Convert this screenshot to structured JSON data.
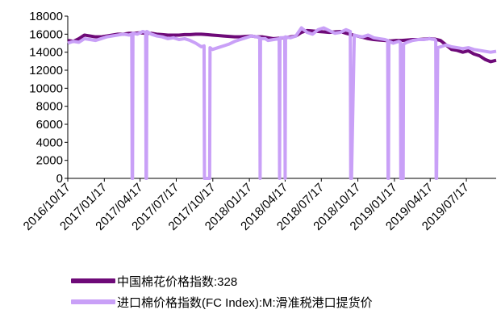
{
  "chart_data": {
    "type": "line",
    "title": "",
    "xlabel": "",
    "ylabel": "",
    "ylim": [
      0,
      18000
    ],
    "yticks": [
      "0",
      "2000",
      "4000",
      "6000",
      "8000",
      "10000",
      "12000",
      "14000",
      "16000",
      "18000"
    ],
    "xticks": [
      "2016/10/17",
      "2017/01/17",
      "2017/04/17",
      "2017/07/17",
      "2017/10/17",
      "2018/01/17",
      "2018/04/17",
      "2018/07/17",
      "2018/10/17",
      "2019/01/17",
      "2019/04/17",
      "2019/07/17"
    ],
    "xrange": [
      "2016-10-17",
      "2019-09-30"
    ],
    "grid": false,
    "legend_position": "bottom",
    "series": [
      {
        "name": "中国棉花价格指数:328",
        "color": "#6e0a78",
        "x": [
          "2016-10-17",
          "2016-10-31",
          "2016-11-14",
          "2016-11-28",
          "2016-12-12",
          "2016-12-26",
          "2017-01-09",
          "2017-01-23",
          "2017-02-06",
          "2017-02-20",
          "2017-03-06",
          "2017-03-20",
          "2017-04-03",
          "2017-04-17",
          "2017-05-01",
          "2017-05-15",
          "2017-05-29",
          "2017-06-12",
          "2017-06-26",
          "2017-07-10",
          "2017-07-24",
          "2017-08-07",
          "2017-08-21",
          "2017-09-04",
          "2017-09-18",
          "2017-10-02",
          "2017-10-16",
          "2017-10-30",
          "2017-11-13",
          "2017-11-27",
          "2017-12-11",
          "2017-12-25",
          "2018-01-08",
          "2018-01-22",
          "2018-02-05",
          "2018-02-19",
          "2018-03-05",
          "2018-03-19",
          "2018-04-02",
          "2018-04-16",
          "2018-04-30",
          "2018-05-14",
          "2018-05-28",
          "2018-06-11",
          "2018-06-25",
          "2018-07-09",
          "2018-07-23",
          "2018-08-06",
          "2018-08-20",
          "2018-09-03",
          "2018-09-17",
          "2018-10-01",
          "2018-10-15",
          "2018-10-29",
          "2018-11-12",
          "2018-11-26",
          "2018-12-10",
          "2018-12-24",
          "2019-01-07",
          "2019-01-21",
          "2019-02-04",
          "2019-02-18",
          "2019-03-04",
          "2019-03-18",
          "2019-04-01",
          "2019-04-15",
          "2019-04-29",
          "2019-05-13",
          "2019-05-27",
          "2019-06-10",
          "2019-06-24",
          "2019-07-08",
          "2019-07-22",
          "2019-08-05",
          "2019-08-19",
          "2019-09-02",
          "2019-09-16",
          "2019-09-30"
        ],
        "values": [
          15300,
          15200,
          15500,
          15900,
          15800,
          15700,
          15700,
          15800,
          15900,
          16000,
          16000,
          16100,
          16100,
          16150,
          16100,
          16100,
          16000,
          15950,
          15900,
          15900,
          15900,
          15950,
          15950,
          16000,
          16000,
          15950,
          15900,
          15850,
          15800,
          15750,
          15700,
          15700,
          15750,
          15800,
          15700,
          15700,
          15600,
          15500,
          15550,
          15600,
          15700,
          15800,
          16200,
          16400,
          16350,
          16300,
          16250,
          16200,
          16250,
          16300,
          16100,
          15950,
          15800,
          15650,
          15500,
          15400,
          15350,
          15300,
          15250,
          15300,
          15300,
          15350,
          15400,
          15400,
          15450,
          15500,
          15450,
          15300,
          14800,
          14300,
          14200,
          14000,
          14150,
          13800,
          13600,
          13200,
          12950,
          13100
        ]
      },
      {
        "name": "进口棉价格指数(FC Index):M:滑准税港口提货价",
        "color": "#c9a0f7",
        "x": [
          "2016-10-17",
          "2016-10-31",
          "2016-11-14",
          "2016-11-28",
          "2016-12-12",
          "2016-12-26",
          "2017-01-09",
          "2017-01-23",
          "2017-02-06",
          "2017-02-20",
          "2017-03-06",
          "2017-03-20",
          "2017-03-27",
          "2017-03-28",
          "2017-03-29",
          "2017-03-30",
          "2017-04-10",
          "2017-04-24",
          "2017-05-01",
          "2017-05-02",
          "2017-05-03",
          "2017-05-04",
          "2017-05-15",
          "2017-05-29",
          "2017-06-12",
          "2017-06-26",
          "2017-07-10",
          "2017-07-24",
          "2017-08-07",
          "2017-08-21",
          "2017-09-04",
          "2017-09-18",
          "2017-09-25",
          "2017-09-26",
          "2017-09-27",
          "2017-10-02",
          "2017-10-09",
          "2017-10-10",
          "2017-10-16",
          "2017-10-30",
          "2017-11-13",
          "2017-11-27",
          "2017-12-11",
          "2017-12-25",
          "2018-01-08",
          "2018-01-22",
          "2018-02-05",
          "2018-02-12",
          "2018-02-13",
          "2018-02-14",
          "2018-02-26",
          "2018-03-05",
          "2018-03-19",
          "2018-04-02",
          "2018-04-03",
          "2018-04-04",
          "2018-04-05",
          "2018-04-16",
          "2018-04-17",
          "2018-04-18",
          "2018-04-30",
          "2018-05-14",
          "2018-05-28",
          "2018-06-11",
          "2018-06-25",
          "2018-07-09",
          "2018-07-23",
          "2018-08-06",
          "2018-08-20",
          "2018-09-03",
          "2018-09-17",
          "2018-09-28",
          "2018-09-29",
          "2018-10-01",
          "2018-10-08",
          "2018-10-15",
          "2018-10-29",
          "2018-11-12",
          "2018-11-26",
          "2018-12-10",
          "2018-12-24",
          "2018-12-31",
          "2019-01-01",
          "2019-01-02",
          "2019-01-03",
          "2019-01-14",
          "2019-01-28",
          "2019-02-01",
          "2019-02-02",
          "2019-02-08",
          "2019-02-09",
          "2019-02-18",
          "2019-03-04",
          "2019-03-18",
          "2019-04-01",
          "2019-04-15",
          "2019-04-29",
          "2019-05-01",
          "2019-05-02",
          "2019-05-03",
          "2019-05-06",
          "2019-05-13",
          "2019-05-27",
          "2019-06-10",
          "2019-06-24",
          "2019-07-08",
          "2019-07-22",
          "2019-08-05",
          "2019-08-19",
          "2019-09-02",
          "2019-09-16",
          "2019-09-30"
        ],
        "values": [
          15000,
          15200,
          15100,
          15500,
          15400,
          15300,
          15500,
          15700,
          15800,
          15900,
          16000,
          15900,
          16000,
          0,
          0,
          16100,
          16000,
          16300,
          16200,
          0,
          0,
          16300,
          16000,
          15800,
          15700,
          15500,
          15600,
          15400,
          15500,
          15300,
          15000,
          14600,
          14700,
          0,
          0,
          0,
          0,
          14500,
          14300,
          14500,
          14700,
          14900,
          15200,
          15400,
          15600,
          15800,
          15700,
          15600,
          0,
          15500,
          15500,
          15300,
          15400,
          15500,
          0,
          15500,
          15600,
          15600,
          0,
          15700,
          15600,
          15800,
          16700,
          16200,
          16000,
          16500,
          16700,
          16400,
          16100,
          16200,
          16500,
          16300,
          0,
          0,
          15900,
          15800,
          15700,
          15900,
          15600,
          15500,
          15400,
          15300,
          0,
          0,
          15200,
          15000,
          15200,
          15100,
          0,
          0,
          14900,
          15100,
          15300,
          15400,
          15400,
          15500,
          15400,
          15300,
          0,
          0,
          14500,
          14600,
          14800,
          14600,
          14500,
          14400,
          14500,
          14300,
          14200,
          14100,
          14000,
          14100
        ]
      }
    ]
  }
}
